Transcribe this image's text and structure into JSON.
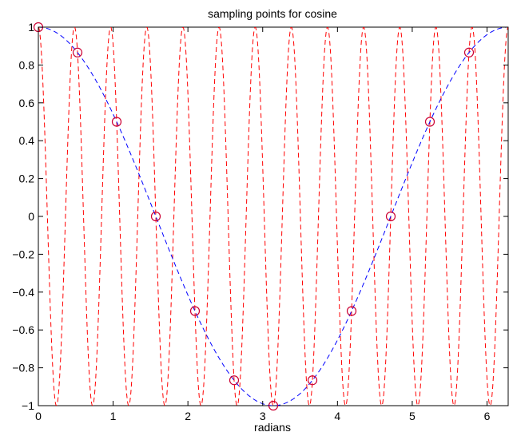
{
  "chart_data": {
    "type": "line",
    "title": "sampling points for cosine",
    "xlabel": "radians",
    "ylabel": "",
    "xlim": [
      0,
      6.283185
    ],
    "ylim": [
      -1,
      1
    ],
    "grid": false,
    "legend": "none",
    "x_ticks": [
      "0",
      "1",
      "2",
      "3",
      "4",
      "5",
      "6"
    ],
    "y_ticks": [
      "−1",
      "−0.8",
      "−0.6",
      "−0.4",
      "−0.2",
      "0",
      "0.2",
      "0.4",
      "0.6",
      "0.8",
      "1"
    ],
    "series": [
      {
        "style": "blue dashed",
        "color": "#0000ff",
        "function": "cos(x)",
        "x": [
          0,
          0.524,
          1.047,
          1.571,
          2.094,
          2.618,
          3.142,
          3.665,
          4.189,
          4.712,
          5.236,
          5.76,
          6.283
        ],
        "values": [
          1,
          0.866,
          0.5,
          0,
          -0.5,
          -0.866,
          -1,
          -0.866,
          -0.5,
          0,
          0.5,
          0.866,
          1
        ]
      },
      {
        "style": "red dashed",
        "color": "#ff0000",
        "function": "cos(13x)",
        "frequency": 13,
        "x": [
          0,
          0.524,
          1.047,
          1.571,
          2.094,
          2.618,
          3.142,
          3.665,
          4.189,
          4.712,
          5.236,
          5.76,
          6.283
        ],
        "values": [
          1,
          0.866,
          0.5,
          0,
          -0.5,
          -0.866,
          -1,
          -0.866,
          -0.5,
          0,
          0.5,
          0.866,
          1
        ]
      },
      {
        "style": "circle markers",
        "color": "#cc0033",
        "x": [
          0,
          0.5236,
          1.0472,
          1.5708,
          2.0944,
          2.618,
          3.1416,
          3.6652,
          4.1888,
          4.7124,
          5.236,
          5.7596
        ],
        "values": [
          1,
          0.866,
          0.5,
          0,
          -0.5,
          -0.866,
          -1,
          -0.866,
          -0.5,
          0,
          0.5,
          0.866
        ]
      }
    ]
  }
}
